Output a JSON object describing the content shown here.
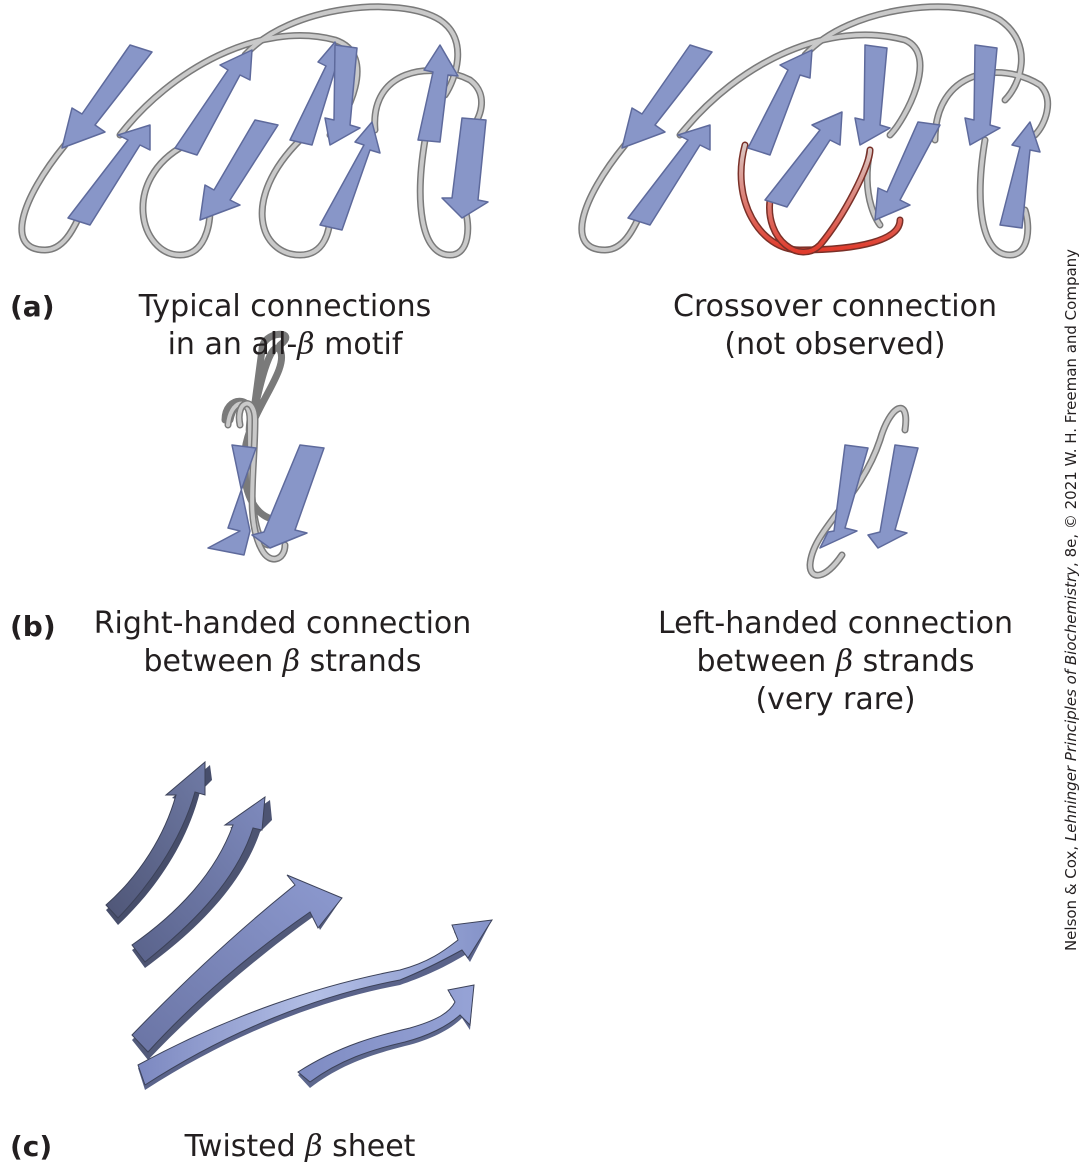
{
  "panels": {
    "a": {
      "label": "(a)",
      "left_caption": {
        "line1": "Typical connections",
        "line2_pre": "in an all-",
        "beta": "β",
        "line2_post": " motif"
      },
      "right_caption": {
        "line1": "Crossover connection",
        "line2": "(not observed)"
      }
    },
    "b": {
      "label": "(b)",
      "left_caption": {
        "line1": "Right-handed connection",
        "line2_pre": "between ",
        "beta": "β",
        "line2_post": "  strands"
      },
      "right_caption": {
        "line1": "Left-handed connection",
        "line2_pre": "between ",
        "beta": "β",
        "line2_post": " strands",
        "line3": "(very rare)"
      }
    },
    "c": {
      "label": "(c)",
      "caption": {
        "pre": "Twisted  ",
        "beta": "β",
        "post": " sheet"
      }
    }
  },
  "credit": {
    "pre": "Nelson & Cox, ",
    "title": "Lehninger Principles of Biochemistry",
    "post": ", 8e, © 2021 W. H. Freeman and Company"
  },
  "colors": {
    "strand": "#8896c8",
    "strand_side": "#6c78aa",
    "loop": "#bdbdbd",
    "loop_edge": "#7a7a7a",
    "crossover": "#e04a3a",
    "twisted_dark": "#5c6486",
    "twisted_light": "#8a98cc"
  }
}
